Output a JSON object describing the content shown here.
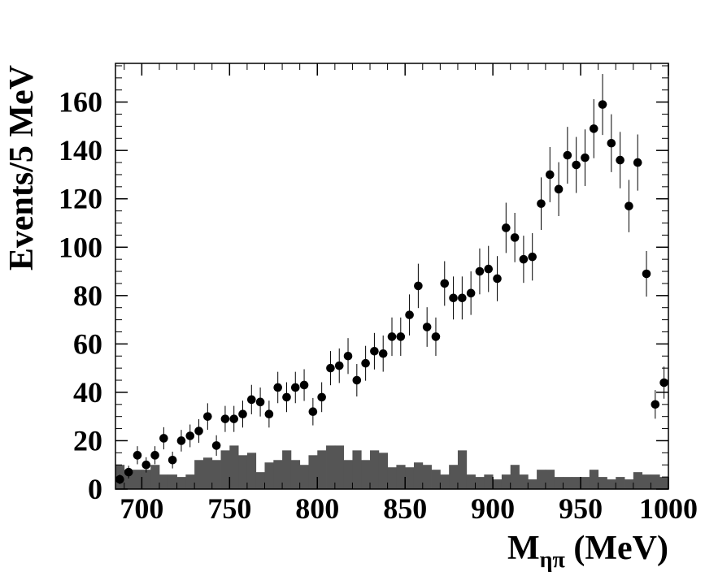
{
  "chart_data": {
    "type": "scatter",
    "title": "",
    "xlabel": {
      "main": "M",
      "sub": "ηπ",
      "unit": " (MeV)"
    },
    "ylabel": "Events/5 MeV",
    "xlim": [
      685,
      1000
    ],
    "ylim": [
      0,
      176
    ],
    "bin_width": 5,
    "x_ticks": [
      700,
      750,
      800,
      850,
      900,
      950,
      1000
    ],
    "y_ticks": [
      0,
      20,
      40,
      60,
      80,
      100,
      120,
      140,
      160
    ],
    "grid": false,
    "legend": "none",
    "colors": {
      "points": "#000000",
      "histogram": "#555555",
      "axes": "#000000"
    },
    "series": [
      {
        "kind": "points_with_errors",
        "x": [
          687.5,
          692.5,
          697.5,
          702.5,
          707.5,
          712.5,
          717.5,
          722.5,
          727.5,
          732.5,
          737.5,
          742.5,
          747.5,
          752.5,
          757.5,
          762.5,
          767.5,
          772.5,
          777.5,
          782.5,
          787.5,
          792.5,
          797.5,
          802.5,
          807.5,
          812.5,
          817.5,
          822.5,
          827.5,
          832.5,
          837.5,
          842.5,
          847.5,
          852.5,
          857.5,
          862.5,
          867.5,
          872.5,
          877.5,
          882.5,
          887.5,
          892.5,
          897.5,
          902.5,
          907.5,
          912.5,
          917.5,
          922.5,
          927.5,
          932.5,
          937.5,
          942.5,
          947.5,
          952.5,
          957.5,
          962.5,
          967.5,
          972.5,
          977.5,
          982.5,
          987.5,
          992.5,
          997.5
        ],
        "y": [
          4,
          7,
          14,
          10,
          14,
          21,
          12,
          20,
          22,
          24,
          30,
          18,
          29,
          29,
          31,
          37,
          36,
          31,
          42,
          38,
          42,
          43,
          32,
          38,
          50,
          51,
          55,
          45,
          52,
          57,
          56,
          63,
          63,
          72,
          84,
          67,
          63,
          85,
          79,
          79,
          81,
          90,
          91,
          87,
          108,
          104,
          95,
          96,
          118,
          130,
          124,
          138,
          134,
          137,
          149,
          159,
          143,
          136,
          117,
          135,
          89,
          35,
          44
        ]
      },
      {
        "kind": "histogram",
        "bin_edges_start": 685,
        "values": [
          10,
          8,
          8,
          8,
          10,
          6,
          6,
          5,
          6,
          12,
          13,
          12,
          16,
          18,
          14,
          15,
          7,
          11,
          12,
          16,
          12,
          10,
          14,
          16,
          18,
          18,
          12,
          16,
          12,
          16,
          15,
          9,
          10,
          9,
          11,
          10,
          8,
          6,
          10,
          16,
          6,
          5,
          6,
          4,
          6,
          10,
          6,
          4,
          8,
          8,
          5,
          5,
          5,
          5,
          8,
          5,
          4,
          5,
          4,
          7,
          6,
          6,
          5
        ]
      }
    ]
  }
}
